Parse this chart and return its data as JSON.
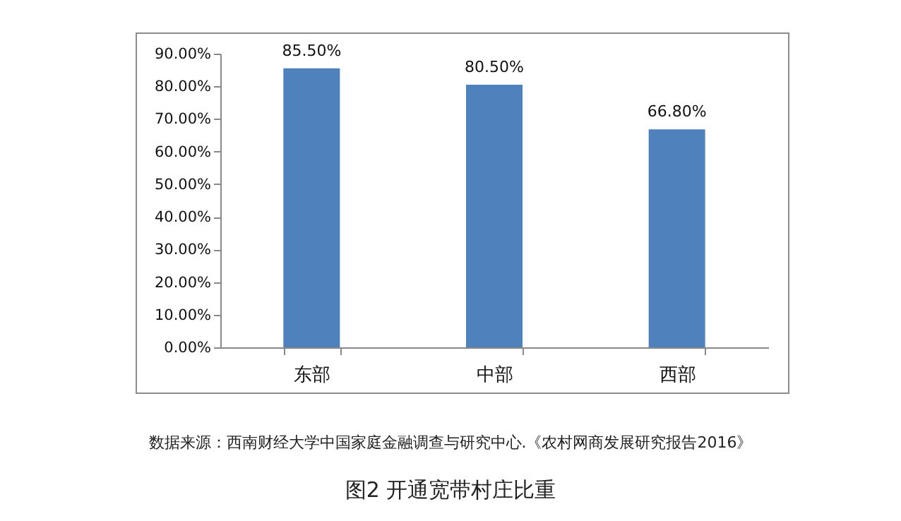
{
  "chart_data": {
    "type": "bar",
    "title": "图2  开通宽带村庄比重",
    "annotations": [
      "数据来源：西南财经大学中国家庭金融调查与研究中心.《农村网商发展研究报告2016》"
    ],
    "categories": [
      "东部",
      "中部",
      "西部"
    ],
    "values": [
      85.5,
      80.5,
      66.8
    ],
    "value_labels": [
      "85.50%",
      "80.50%",
      "66.80%"
    ],
    "color": "#4f81bd",
    "ylim": [
      0,
      90
    ],
    "yticks": [
      {
        "value": 0,
        "label": "0.00%"
      },
      {
        "value": 10,
        "label": "10.00%"
      },
      {
        "value": 20,
        "label": "20.00%"
      },
      {
        "value": 30,
        "label": "30.00%"
      },
      {
        "value": 40,
        "label": "40.00%"
      },
      {
        "value": 50,
        "label": "50.00%"
      },
      {
        "value": 60,
        "label": "60.00%"
      },
      {
        "value": 70,
        "label": "70.00%"
      },
      {
        "value": 80,
        "label": "80.00%"
      },
      {
        "value": 90,
        "label": "90.00%"
      }
    ],
    "grid": false
  }
}
